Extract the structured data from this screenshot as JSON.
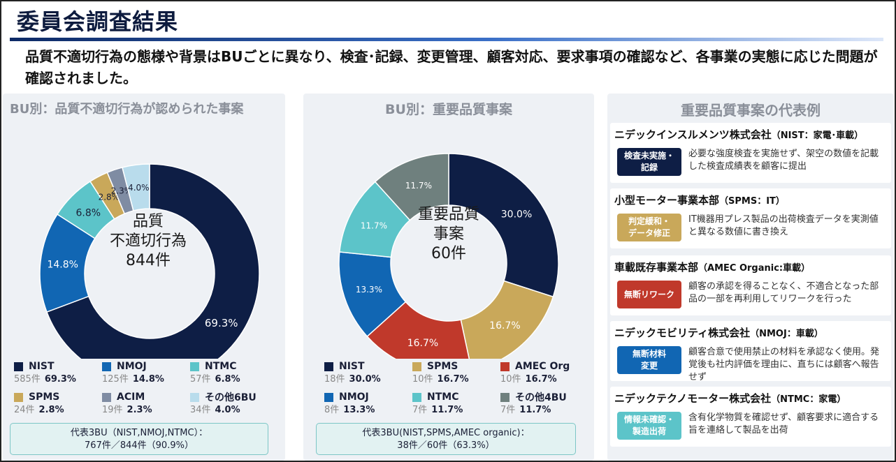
{
  "header": {
    "title": "委員会調査結果",
    "subtitle": "品質不適切行為の態様や背景はBUごとに異なり、検査･記録、変更管理、顧客対応、要求事項の確認など、各事業の実態に応じた問題が確認されました。"
  },
  "colors": {
    "navy": "#0e1e45",
    "blue": "#1166b3",
    "teal": "#5cc4c9",
    "gold": "#c9a85a",
    "slate": "#7f8ca3",
    "lightblue": "#b9dcec",
    "red": "#c0392b",
    "gray": "#6f807e"
  },
  "chart_data": [
    {
      "type": "pie",
      "title": "BU別：品質不適切行為が認められた事案",
      "center_label": [
        "品質",
        "不適切行為",
        "844件"
      ],
      "series": [
        {
          "name": "NIST",
          "count": "585件",
          "value": 69.3,
          "label": "69.3%",
          "color": "#0e1e45"
        },
        {
          "name": "NMOJ",
          "count": "125件",
          "value": 14.8,
          "label": "14.8%",
          "color": "#1166b3"
        },
        {
          "name": "NTMC",
          "count": "57件",
          "value": 6.8,
          "label": "6.8%",
          "color": "#5cc4c9"
        },
        {
          "name": "SPMS",
          "count": "24件",
          "value": 2.8,
          "label": "2.8%",
          "color": "#c9a85a"
        },
        {
          "name": "ACIM",
          "count": "19件",
          "value": 2.3,
          "label": "2.3%",
          "color": "#7f8ca3"
        },
        {
          "name": "その他6BU",
          "count": "34件",
          "value": 4.0,
          "label": "4.0%",
          "color": "#b9dcec"
        }
      ],
      "summary": [
        "代表3BU（NIST,NMOJ,NTMC）：",
        "767件／844件（90.9%）"
      ]
    },
    {
      "type": "pie",
      "title": "BU別：重要品質事案",
      "center_label": [
        "重要品質",
        "事案",
        "60件"
      ],
      "series": [
        {
          "name": "NIST",
          "count": "18件",
          "value": 30.0,
          "label": "30.0%",
          "color": "#0e1e45"
        },
        {
          "name": "SPMS",
          "count": "10件",
          "value": 16.7,
          "label": "16.7%",
          "color": "#c9a85a"
        },
        {
          "name": "AMEC Org",
          "count": "10件",
          "value": 16.7,
          "label": "16.7%",
          "color": "#c0392b"
        },
        {
          "name": "NMOJ",
          "count": "8件",
          "value": 13.3,
          "label": "13.3%",
          "color": "#1166b3"
        },
        {
          "name": "NTMC",
          "count": "7件",
          "value": 11.7,
          "label": "11.7%",
          "color": "#5cc4c9"
        },
        {
          "name": "その他4BU",
          "count": "7件",
          "value": 11.7,
          "label": "11.7%",
          "color": "#6f807e"
        }
      ],
      "summary": [
        "代表3BU(NIST,SPMS,AMEC organic)：",
        "38件／60件（63.3%）"
      ]
    }
  ],
  "cases": {
    "title": "重要品質事案の代表例",
    "items": [
      {
        "company": "ニデックインスルメンツ株式会社",
        "tag": "（NIST：家電･車載）",
        "badge": [
          "検査未実施・",
          "記録"
        ],
        "badge_color": "#0e1e45",
        "desc": "必要な強度検査を実施せず、架空の数値を記載した検査成績表を顧客に提出"
      },
      {
        "company": "小型モーター事業本部",
        "tag": "（SPMS：IT）",
        "badge": [
          "判定緩和・",
          "データ修正"
        ],
        "badge_color": "#c9a85a",
        "desc": "IT機器用プレス製品の出荷検査データを実測値と異なる数値に書き換え"
      },
      {
        "company": "車載既存事業本部",
        "tag": "（AMEC Organic:車載）",
        "badge": [
          "無断リワーク"
        ],
        "badge_color": "#c0392b",
        "desc": "顧客の承認を得ることなく、不適合となった部品の一部を再利用してリワークを行った"
      },
      {
        "company": "ニデックモビリティ株式会社",
        "tag": "（NMOJ：車載）",
        "badge": [
          "無断材料",
          "変更"
        ],
        "badge_color": "#1166b3",
        "desc": "顧客合意で使用禁止の材料を承認なく使用。発覚後も社内評価を理由に、直ちには顧客へ報告せず"
      },
      {
        "company": "ニデックテクノモーター株式会社",
        "tag": "（NTMC：家電）",
        "badge": [
          "情報未確認・",
          "製造出荷"
        ],
        "badge_color": "#5cc4c9",
        "desc": "含有化学物質を確認せず、顧客要求に適合する旨を連絡して製品を出荷"
      }
    ]
  }
}
